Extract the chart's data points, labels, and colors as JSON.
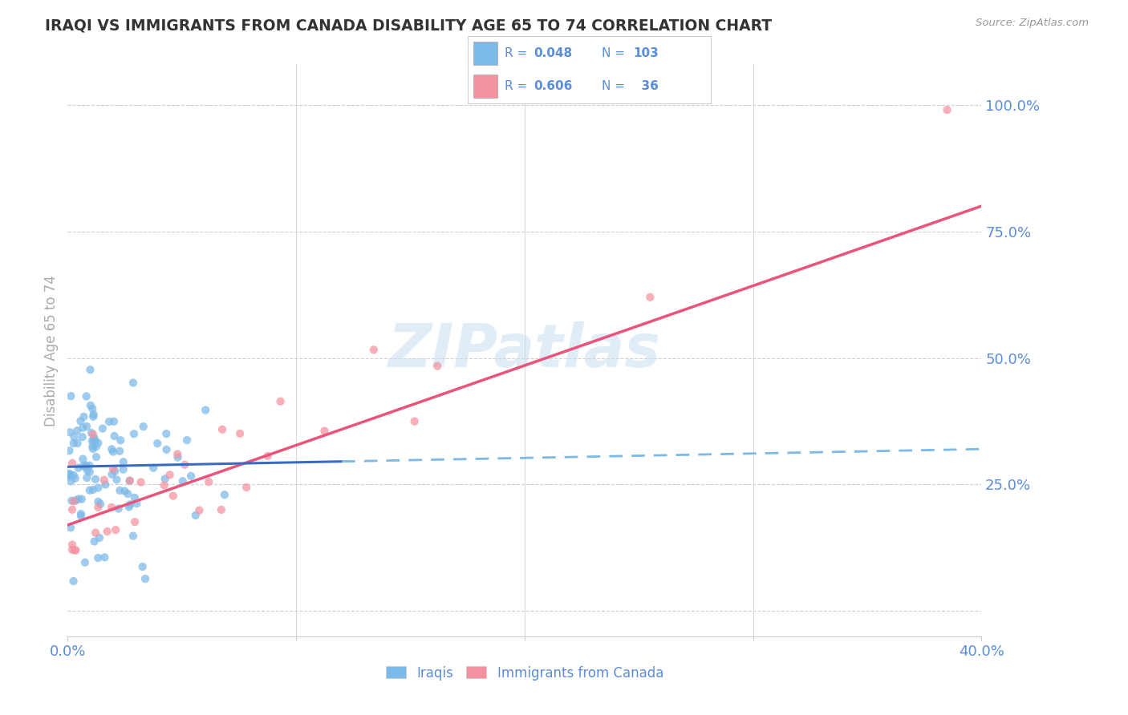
{
  "title": "IRAQI VS IMMIGRANTS FROM CANADA DISABILITY AGE 65 TO 74 CORRELATION CHART",
  "source": "Source: ZipAtlas.com",
  "ylabel": "Disability Age 65 to 74",
  "watermark": "ZIPatlas",
  "xlim": [
    0.0,
    0.4
  ],
  "ylim": [
    -0.05,
    1.08
  ],
  "yticks": [
    0.0,
    0.25,
    0.5,
    0.75,
    1.0
  ],
  "ytick_labels": [
    "",
    "25.0%",
    "50.0%",
    "75.0%",
    "100.0%"
  ],
  "blue_color": "#7ab9e8",
  "pink_color": "#f4919f",
  "blue_line_solid_color": "#3a6bbf",
  "blue_line_dash_color": "#7ab9e8",
  "pink_line_color": "#e8547a",
  "axis_label_color": "#5b8dd9",
  "title_color": "#333333",
  "grid_color": "#d0d0d0",
  "background_color": "#ffffff",
  "blue_trend_x": [
    0.0,
    0.4
  ],
  "blue_trend_y": [
    0.285,
    0.32
  ],
  "pink_trend_x": [
    0.0,
    0.4
  ],
  "pink_trend_y": [
    0.17,
    0.8
  ],
  "blue_solid_cutoff": 0.12
}
